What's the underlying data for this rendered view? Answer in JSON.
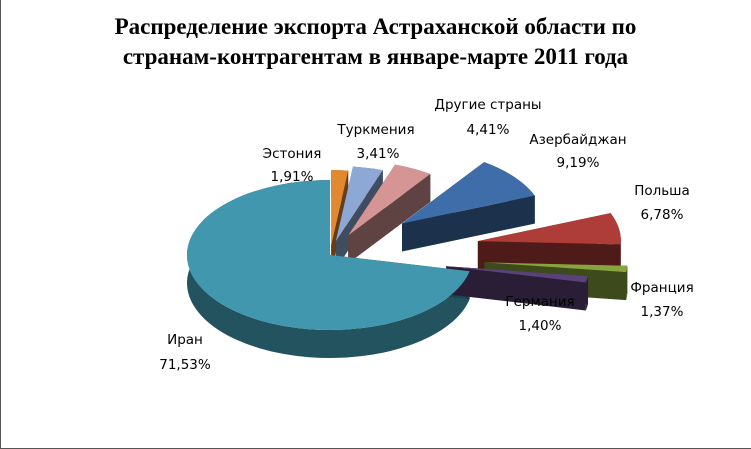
{
  "chart_data": {
    "type": "pie",
    "title": "Распределение экспорта Астраханской области по странам-контрагентам в январе-марте 2011 года",
    "title_lines": [
      "Распределение экспорта Астраханской области по",
      "странам-контрагентам в январе-марте 2011 года"
    ],
    "style": "3d-exploded",
    "legend": "none (data labels)",
    "slices": [
      {
        "label": "Иран",
        "value": "71,53%",
        "pct": 71.53,
        "color": "#4197AE"
      },
      {
        "label": "Эстония",
        "value": "1,91%",
        "pct": 1.91,
        "color": "#E2882F"
      },
      {
        "label": "Туркмения",
        "value": "3,41%",
        "pct": 3.41,
        "color": "#8EA8D6"
      },
      {
        "label": "Другие страны",
        "value": "4,41%",
        "pct": 4.41,
        "color": "#D49594"
      },
      {
        "label": "Азербайджан",
        "value": "9,19%",
        "pct": 9.19,
        "color": "#3E6DA9"
      },
      {
        "label": "Польша",
        "value": "6,78%",
        "pct": 6.78,
        "color": "#AE3C38"
      },
      {
        "label": "Франция",
        "value": "1,37%",
        "pct": 1.37,
        "color": "#87A43E"
      },
      {
        "label": "Германия",
        "value": "1,40%",
        "pct": 1.4,
        "color": "#5A4279"
      }
    ]
  }
}
